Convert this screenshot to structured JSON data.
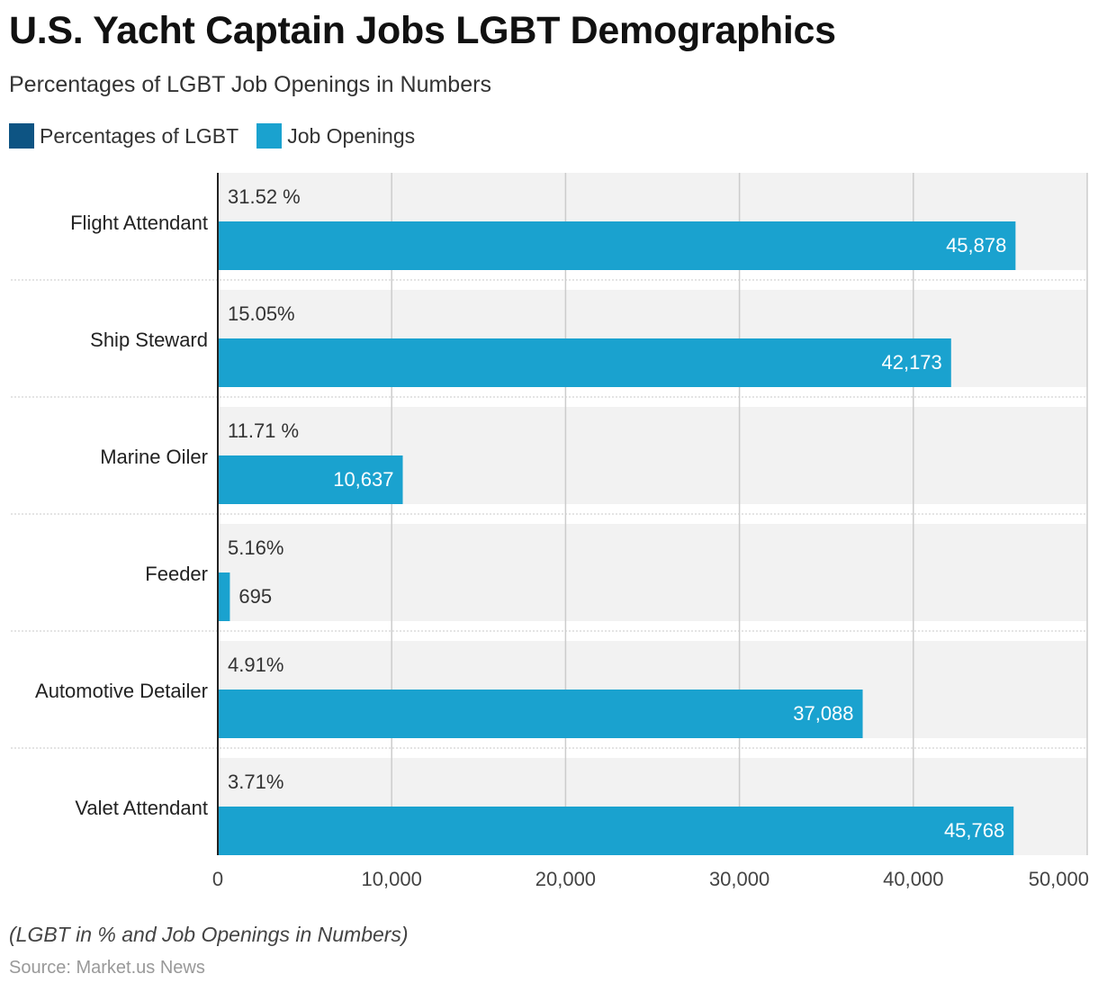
{
  "colors": {
    "lgbt": "#0d5483",
    "jobs": "#1aa2cf",
    "band": "#f2f2f2",
    "grid": "#cccccc",
    "separator": "#c8c8c8",
    "axis": "#222222"
  },
  "chart_data": {
    "type": "bar",
    "orientation": "horizontal",
    "title": "U.S. Yacht Captain Jobs LGBT Demographics",
    "subtitle": "Percentages of LGBT Job Openings in Numbers",
    "categories": [
      "Flight Attendant",
      "Ship Steward",
      "Marine Oiler",
      "Feeder",
      "Automotive Detailer",
      "Valet Attendant"
    ],
    "series": [
      {
        "name": "Percentages of LGBT",
        "values": [
          31.52,
          15.05,
          11.71,
          5.16,
          4.91,
          3.71
        ],
        "labels": [
          "31.52 %",
          "15.05%",
          "11.71 %",
          "5.16%",
          "4.91%",
          "3.71%"
        ]
      },
      {
        "name": "Job Openings",
        "values": [
          45878,
          42173,
          10637,
          695,
          37088,
          45768
        ],
        "labels": [
          "45,878",
          "42,173",
          "10,637",
          "695",
          "37,088",
          "45,768"
        ]
      }
    ],
    "x_ticks": [
      0,
      10000,
      20000,
      30000,
      40000,
      50000
    ],
    "x_tick_labels": [
      "0",
      "10,000",
      "20,000",
      "30,000",
      "40,000",
      "50,000"
    ],
    "xlim": [
      0,
      50000
    ],
    "grid": true,
    "legend_position": "top-left",
    "footnote": "(LGBT in % and Job Openings in Numbers)",
    "source": "Source: Market.us News"
  }
}
